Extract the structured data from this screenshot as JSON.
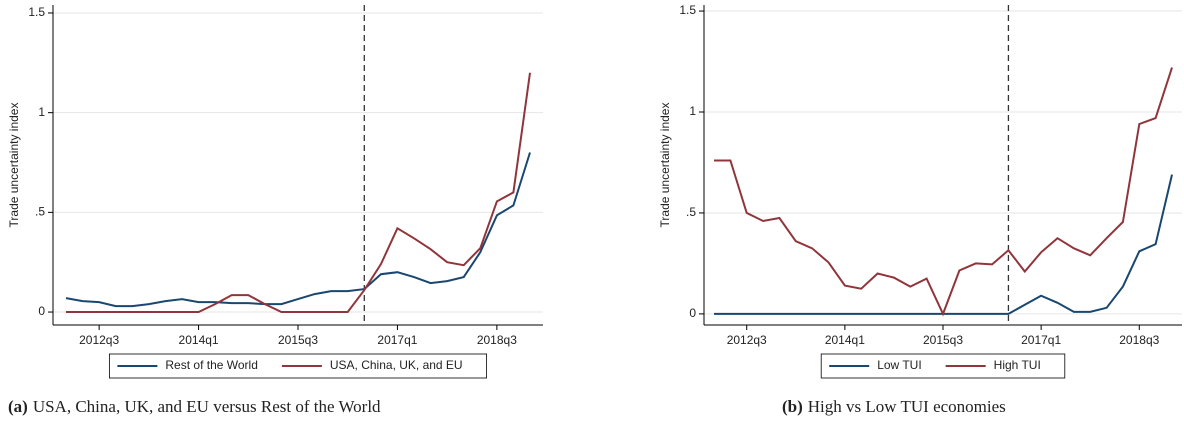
{
  "chart_data": [
    {
      "type": "line",
      "caption_label": "(a)",
      "caption": "USA, China, UK, and EU versus Rest of the World",
      "y_label": "Trade uncertainty index",
      "categories": [
        null,
        null,
        "2012q3",
        null,
        null,
        null,
        null,
        null,
        "2014q1",
        null,
        null,
        null,
        null,
        null,
        "2015q3",
        null,
        null,
        null,
        null,
        null,
        "2017q1",
        null,
        null,
        null,
        null,
        null,
        "2018q3",
        null,
        null
      ],
      "vline": 18,
      "ylim": [
        -0.065,
        1.54
      ],
      "yticks": [
        0,
        {
          "value": 0.5,
          "label": ".5"
        },
        1,
        1.5
      ],
      "grid": true,
      "legend": "bottom",
      "series": [
        {
          "name": "Rest of the World",
          "color": "#1a476f",
          "values": [
            0.07,
            0.055,
            0.05,
            0.03,
            0.03,
            0.04,
            0.055,
            0.065,
            0.05,
            0.05,
            0.045,
            0.045,
            0.04,
            0.04,
            0.065,
            0.09,
            0.105,
            0.105,
            0.115,
            0.19,
            0.2,
            0.175,
            0.145,
            0.155,
            0.175,
            0.3,
            0.485,
            0.535,
            0.8
          ]
        },
        {
          "name": "USA, China, UK, and EU",
          "color": "#90353b",
          "values": [
            0,
            0,
            0,
            0,
            0,
            0,
            0,
            0,
            0,
            0.04,
            0.085,
            0.085,
            0.04,
            0,
            0,
            0,
            0,
            0,
            0.11,
            0.24,
            0.42,
            0.37,
            0.315,
            0.25,
            0.235,
            0.32,
            0.555,
            0.6,
            1.2
          ]
        }
      ]
    },
    {
      "type": "line",
      "caption_label": "(b)",
      "caption": "High vs Low TUI economies",
      "y_label": "Trade uncertainty index",
      "categories": [
        null,
        null,
        "2012q3",
        null,
        null,
        null,
        null,
        null,
        "2014q1",
        null,
        null,
        null,
        null,
        null,
        "2015q3",
        null,
        null,
        null,
        null,
        null,
        "2017q1",
        null,
        null,
        null,
        null,
        null,
        "2018q3",
        null,
        null
      ],
      "vline": 18,
      "ylim": [
        -0.055,
        1.53
      ],
      "yticks": [
        0,
        {
          "value": 0.5,
          "label": ".5"
        },
        1,
        1.5
      ],
      "grid": true,
      "legend": "bottom",
      "series": [
        {
          "name": "Low TUI",
          "color": "#1a476f",
          "values": [
            0,
            0,
            0,
            0,
            0,
            0,
            0,
            0,
            0,
            0,
            0,
            0,
            0,
            0,
            0,
            0,
            0,
            0,
            0,
            0.045,
            0.09,
            0.055,
            0.01,
            0.01,
            0.03,
            0.135,
            0.31,
            0.345,
            0.69
          ]
        },
        {
          "name": "High TUI",
          "color": "#90353b",
          "values": [
            0.76,
            0.76,
            0.5,
            0.46,
            0.475,
            0.36,
            0.325,
            0.255,
            0.14,
            0.125,
            0.2,
            0.18,
            0.135,
            0.175,
            0,
            0.215,
            0.25,
            0.245,
            0.315,
            0.21,
            0.305,
            0.375,
            0.325,
            0.29,
            0.375,
            0.455,
            0.94,
            0.97,
            1.22
          ]
        }
      ]
    }
  ]
}
